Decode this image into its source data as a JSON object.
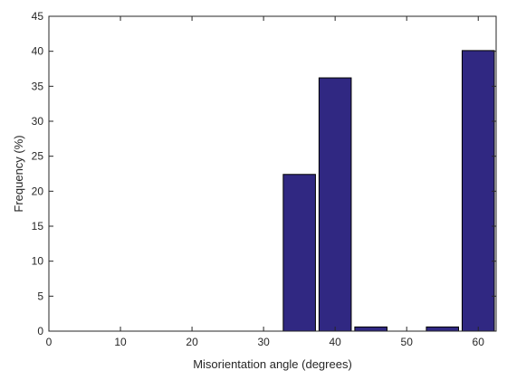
{
  "chart_data": {
    "type": "bar",
    "x": [
      35,
      40,
      45,
      50,
      55,
      60
    ],
    "values": [
      22.4,
      36.2,
      0.6,
      0,
      0.6,
      40.1
    ],
    "bar_width": 4.5,
    "xlim": [
      0,
      62.5
    ],
    "ylim": [
      0,
      45
    ],
    "xticks": [
      "0",
      "10",
      "20",
      "30",
      "40",
      "50",
      "60"
    ],
    "yticks": [
      "0",
      "5",
      "10",
      "15",
      "20",
      "25",
      "30",
      "35",
      "40",
      "45"
    ],
    "xlabel": "Misorientation angle (degrees)",
    "ylabel": "Frequency (%)",
    "bar_color": "#302882",
    "edge_color": "#000000",
    "grid": false,
    "box": true
  }
}
